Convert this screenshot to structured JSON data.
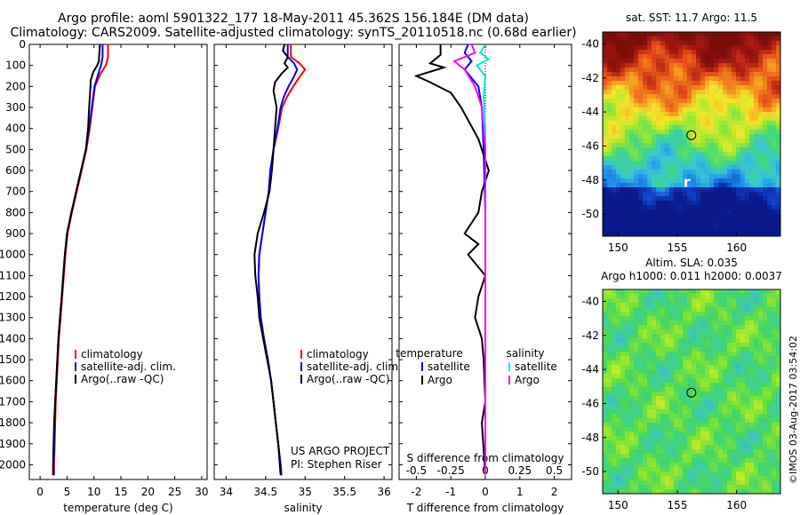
{
  "header": {
    "title_line1": "Argo profile: aoml 5901322_177 18-May-2011 45.362S 156.184E (DM data)",
    "title_line2": "Climatology: CARS2009. Satellite-adjusted climatology: synTS_20110518.nc (0.68d earlier)"
  },
  "stamp": "©IMOS 03-Aug-2017 03:54:02",
  "colors": {
    "climatology": "#ff0000",
    "satellite": "#0000ff",
    "argo": "#000000",
    "sat_salinity": "#00e5ee",
    "argo_salinity": "#ff00ff"
  },
  "chart_data": [
    {
      "type": "line",
      "name": "temperature panel",
      "xlabel": "temperature (deg C)",
      "ylabel": "",
      "xlim": [
        -2,
        31
      ],
      "ylim": [
        2070,
        0
      ],
      "xticks": [
        0,
        5,
        10,
        15,
        20,
        25,
        30
      ],
      "yticks": [
        0,
        100,
        200,
        300,
        400,
        500,
        600,
        700,
        800,
        900,
        1000,
        1100,
        1200,
        1300,
        1400,
        1500,
        1600,
        1700,
        1800,
        1900,
        2000
      ],
      "legend": [
        "climatology",
        "satellite-adj. clim.",
        "Argo(..raw -QC)"
      ],
      "legend_position": "lower-center",
      "series": [
        {
          "name": "climatology",
          "color": "#ff0000",
          "points": [
            [
              12.6,
              0
            ],
            [
              12.6,
              60
            ],
            [
              12.2,
              100
            ],
            [
              11.2,
              140
            ],
            [
              10.2,
              200
            ],
            [
              9.7,
              300
            ],
            [
              9.2,
              400
            ],
            [
              8.6,
              500
            ],
            [
              7.7,
              600
            ],
            [
              6.8,
              700
            ],
            [
              5.9,
              800
            ],
            [
              5.1,
              900
            ],
            [
              4.7,
              1000
            ],
            [
              4.4,
              1100
            ],
            [
              4.1,
              1200
            ],
            [
              3.8,
              1300
            ],
            [
              3.5,
              1400
            ],
            [
              3.3,
              1500
            ],
            [
              3.1,
              1600
            ],
            [
              2.9,
              1700
            ],
            [
              2.8,
              1800
            ],
            [
              2.7,
              1900
            ],
            [
              2.6,
              2000
            ],
            [
              2.6,
              2050
            ]
          ]
        },
        {
          "name": "satellite-adj. clim.",
          "color": "#0000ff",
          "points": [
            [
              11.6,
              0
            ],
            [
              11.6,
              60
            ],
            [
              11.3,
              100
            ],
            [
              10.8,
              140
            ],
            [
              10.1,
              200
            ],
            [
              9.6,
              300
            ],
            [
              9.1,
              400
            ],
            [
              8.5,
              500
            ],
            [
              7.6,
              600
            ],
            [
              6.7,
              700
            ],
            [
              5.8,
              800
            ],
            [
              5.0,
              900
            ],
            [
              4.6,
              1000
            ],
            [
              4.3,
              1100
            ],
            [
              4.0,
              1200
            ],
            [
              3.7,
              1300
            ],
            [
              3.4,
              1400
            ],
            [
              3.2,
              1500
            ],
            [
              3.0,
              1600
            ],
            [
              2.8,
              1700
            ],
            [
              2.7,
              1800
            ],
            [
              2.6,
              1900
            ],
            [
              2.5,
              2000
            ],
            [
              2.5,
              2050
            ]
          ]
        },
        {
          "name": "Argo(..raw -QC)",
          "color": "#000000",
          "points": [
            [
              11.1,
              0
            ],
            [
              11.0,
              40
            ],
            [
              10.9,
              80
            ],
            [
              10.6,
              100
            ],
            [
              9.9,
              130
            ],
            [
              9.4,
              170
            ],
            [
              9.3,
              220
            ],
            [
              9.1,
              300
            ],
            [
              8.9,
              400
            ],
            [
              8.5,
              500
            ],
            [
              7.6,
              600
            ],
            [
              6.7,
              700
            ],
            [
              5.8,
              800
            ],
            [
              5.0,
              900
            ],
            [
              4.6,
              1000
            ],
            [
              4.3,
              1100
            ],
            [
              4.0,
              1200
            ],
            [
              3.7,
              1300
            ],
            [
              3.4,
              1400
            ],
            [
              3.2,
              1500
            ],
            [
              3.0,
              1600
            ],
            [
              2.8,
              1700
            ],
            [
              2.6,
              1800
            ],
            [
              2.5,
              1900
            ],
            [
              2.4,
              2000
            ],
            [
              2.4,
              2050
            ]
          ]
        }
      ]
    },
    {
      "type": "line",
      "name": "salinity panel",
      "xlabel": "salinity",
      "ylabel": "",
      "xlim": [
        33.85,
        36.1
      ],
      "ylim": [
        2070,
        0
      ],
      "xticks": [
        34,
        34.5,
        35,
        35.5,
        36
      ],
      "legend": [
        "climatology",
        "satellite-adj. clim.",
        "Argo(..raw -QC)"
      ],
      "legend_position": "lower-right",
      "annotation": [
        "US ARGO PROJECT",
        "PI: Stephen Riser"
      ],
      "series": [
        {
          "name": "climatology",
          "color": "#ff0000",
          "points": [
            [
              34.82,
              0
            ],
            [
              34.82,
              60
            ],
            [
              34.93,
              90
            ],
            [
              35.0,
              120
            ],
            [
              34.92,
              160
            ],
            [
              34.85,
              200
            ],
            [
              34.77,
              250
            ],
            [
              34.71,
              300
            ],
            [
              34.66,
              400
            ],
            [
              34.6,
              500
            ],
            [
              34.56,
              600
            ],
            [
              34.54,
              700
            ],
            [
              34.5,
              800
            ],
            [
              34.46,
              900
            ],
            [
              34.42,
              1000
            ],
            [
              34.41,
              1100
            ],
            [
              34.42,
              1200
            ],
            [
              34.44,
              1300
            ],
            [
              34.48,
              1400
            ],
            [
              34.53,
              1500
            ],
            [
              34.57,
              1600
            ],
            [
              34.6,
              1700
            ],
            [
              34.63,
              1800
            ],
            [
              34.66,
              1900
            ],
            [
              34.69,
              2000
            ],
            [
              34.7,
              2050
            ]
          ]
        },
        {
          "name": "satellite-adj. clim.",
          "color": "#0000ff",
          "points": [
            [
              34.78,
              0
            ],
            [
              34.78,
              60
            ],
            [
              34.86,
              90
            ],
            [
              34.9,
              120
            ],
            [
              34.85,
              160
            ],
            [
              34.79,
              200
            ],
            [
              34.73,
              250
            ],
            [
              34.69,
              300
            ],
            [
              34.65,
              400
            ],
            [
              34.6,
              500
            ],
            [
              34.56,
              600
            ],
            [
              34.54,
              700
            ],
            [
              34.5,
              800
            ],
            [
              34.46,
              900
            ],
            [
              34.42,
              1000
            ],
            [
              34.41,
              1100
            ],
            [
              34.42,
              1200
            ],
            [
              34.44,
              1300
            ],
            [
              34.48,
              1400
            ],
            [
              34.53,
              1500
            ],
            [
              34.57,
              1600
            ],
            [
              34.6,
              1700
            ],
            [
              34.63,
              1800
            ],
            [
              34.66,
              1900
            ],
            [
              34.69,
              2000
            ],
            [
              34.7,
              2050
            ]
          ]
        },
        {
          "name": "Argo(..raw -QC)",
          "color": "#000000",
          "points": [
            [
              34.74,
              0
            ],
            [
              34.72,
              30
            ],
            [
              34.78,
              60
            ],
            [
              34.74,
              90
            ],
            [
              34.78,
              110
            ],
            [
              34.7,
              140
            ],
            [
              34.62,
              180
            ],
            [
              34.6,
              220
            ],
            [
              34.62,
              260
            ],
            [
              34.64,
              300
            ],
            [
              34.62,
              400
            ],
            [
              34.6,
              500
            ],
            [
              34.58,
              600
            ],
            [
              34.55,
              700
            ],
            [
              34.48,
              800
            ],
            [
              34.4,
              900
            ],
            [
              34.36,
              1000
            ],
            [
              34.37,
              1100
            ],
            [
              34.4,
              1200
            ],
            [
              34.42,
              1300
            ],
            [
              34.47,
              1400
            ],
            [
              34.52,
              1500
            ],
            [
              34.57,
              1600
            ],
            [
              34.6,
              1700
            ],
            [
              34.63,
              1800
            ],
            [
              34.66,
              1900
            ],
            [
              34.68,
              2000
            ],
            [
              34.69,
              2050
            ]
          ]
        }
      ]
    },
    {
      "type": "line",
      "name": "difference panel",
      "xlabel": "T difference from climatology",
      "xlabel2": "S difference from climatology",
      "xlim": [
        -2.5,
        2.5
      ],
      "ylim": [
        2070,
        0
      ],
      "xticks": [
        -2,
        -1,
        0,
        1,
        2
      ],
      "xticks_top": [
        -0.5,
        -0.25,
        0,
        0.25,
        0.5
      ],
      "legend_temperature": {
        "title": "temperature",
        "items": [
          "satellite",
          "Argo"
        ]
      },
      "legend_salinity": {
        "title": "salinity",
        "items": [
          "satellite",
          "Argo"
        ]
      },
      "legend_position": "center",
      "series": [
        {
          "name": "temperature satellite",
          "color": "#0000ff",
          "points": [
            [
              -0.5,
              0
            ],
            [
              -0.6,
              40
            ],
            [
              -0.4,
              80
            ],
            [
              -0.6,
              120
            ],
            [
              -0.2,
              200
            ],
            [
              -0.1,
              300
            ],
            [
              -0.05,
              500
            ],
            [
              0,
              800
            ],
            [
              0,
              1200
            ],
            [
              0,
              2050
            ]
          ]
        },
        {
          "name": "temperature Argo",
          "color": "#000000",
          "points": [
            [
              -1.3,
              0
            ],
            [
              -1.3,
              50
            ],
            [
              -1.6,
              90
            ],
            [
              -1.2,
              110
            ],
            [
              -2.0,
              150
            ],
            [
              -1.6,
              180
            ],
            [
              -1.0,
              230
            ],
            [
              -0.7,
              300
            ],
            [
              -0.2,
              450
            ],
            [
              0.1,
              600
            ],
            [
              -0.1,
              700
            ],
            [
              -0.2,
              800
            ],
            [
              -0.6,
              900
            ],
            [
              -0.2,
              950
            ],
            [
              -0.5,
              1000
            ],
            [
              0,
              1100
            ],
            [
              -0.2,
              1200
            ],
            [
              -0.3,
              1300
            ],
            [
              -0.1,
              1400
            ],
            [
              -0.05,
              1500
            ],
            [
              0,
              1700
            ],
            [
              -0.1,
              1800
            ],
            [
              0,
              2050
            ]
          ]
        },
        {
          "name": "salinity satellite",
          "color": "#00e5ee",
          "points": [
            [
              0,
              0
            ],
            [
              -0.15,
              40
            ],
            [
              0.1,
              70
            ],
            [
              -0.25,
              100
            ],
            [
              0,
              150
            ],
            [
              -0.05,
              250
            ],
            [
              0,
              400
            ],
            [
              0,
              2050
            ]
          ]
        },
        {
          "name": "salinity Argo",
          "color": "#ff00ff",
          "points": [
            [
              -0.4,
              0
            ],
            [
              -0.3,
              40
            ],
            [
              -0.9,
              80
            ],
            [
              -0.6,
              120
            ],
            [
              -0.3,
              200
            ],
            [
              -0.1,
              300
            ],
            [
              0,
              500
            ],
            [
              0,
              900
            ],
            [
              0,
              2050
            ]
          ]
        }
      ]
    }
  ],
  "maps": [
    {
      "type": "heatmap",
      "title": "sat. SST: 11.7  Argo: 11.5",
      "xlim": [
        148.7,
        163.7
      ],
      "ylim": [
        -51.3,
        -39.3
      ],
      "xticks": [
        150,
        155,
        160
      ],
      "yticks": [
        -40,
        -42,
        -44,
        -46,
        -48,
        -50
      ],
      "float_marker": {
        "lon": 156.184,
        "lat": -45.362
      },
      "text_mark": "r",
      "colors": [
        "#0a1a8a",
        "#0c3fc8",
        "#1e8fea",
        "#39c6d6",
        "#3fd77e",
        "#9ee832",
        "#f3e62a",
        "#f4a01e",
        "#e8501a",
        "#a61812",
        "#7a0f0a"
      ]
    },
    {
      "type": "heatmap",
      "title_line1": "Altim. SLA: 0.035",
      "title_line2": "Argo h1000: 0.011  h2000: 0.0037",
      "xlim": [
        148.7,
        163.7
      ],
      "ylim": [
        -51.3,
        -39.3
      ],
      "xticks": [
        150,
        155,
        160
      ],
      "yticks": [
        -40,
        -42,
        -44,
        -46,
        -48,
        -50
      ],
      "float_marker": {
        "lon": 156.184,
        "lat": -45.362
      },
      "colors": [
        "#3cb6d8",
        "#3ecf9c",
        "#42d467",
        "#77e23a",
        "#b8ea2a",
        "#e4ea2a"
      ]
    }
  ]
}
